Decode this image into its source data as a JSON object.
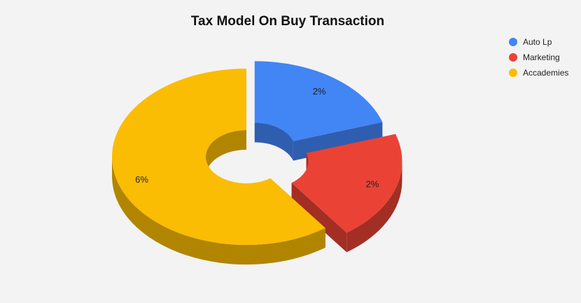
{
  "chart_data": {
    "type": "pie",
    "variant": "3d-donut-exploded",
    "title": "Tax Model On Buy Transaction",
    "legend_position": "top-right",
    "slices": [
      {
        "name": "Auto Lp",
        "value": 2,
        "label": "2%",
        "color": "#4285f4",
        "side_color": "#2f5eb0"
      },
      {
        "name": "Marketing",
        "value": 2,
        "label": "2%",
        "color": "#ea4335",
        "side_color": "#a32e24"
      },
      {
        "name": "Accademies",
        "value": 6,
        "label": "6%",
        "color": "#fbbc04",
        "side_color": "#b28500"
      }
    ]
  }
}
